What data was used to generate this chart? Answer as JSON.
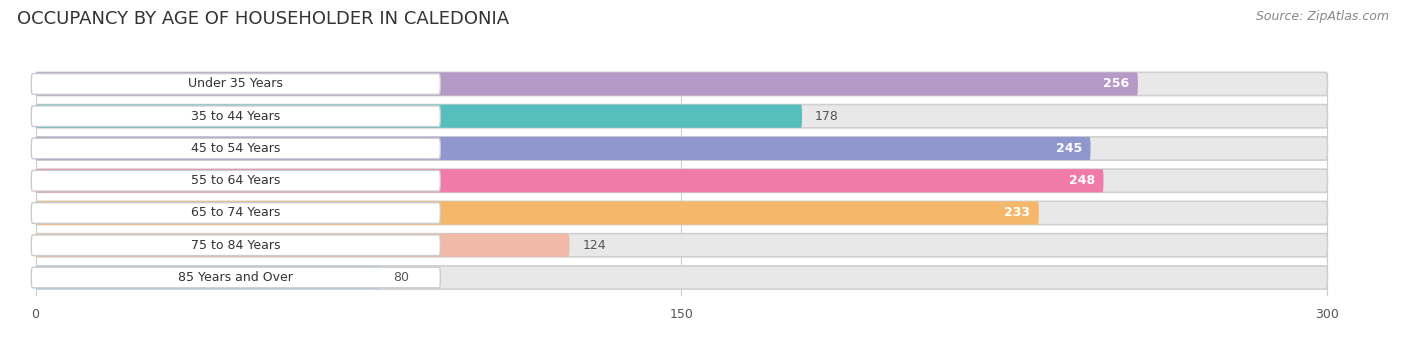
{
  "title": "OCCUPANCY BY AGE OF HOUSEHOLDER IN CALEDONIA",
  "source": "Source: ZipAtlas.com",
  "categories": [
    "Under 35 Years",
    "35 to 44 Years",
    "45 to 54 Years",
    "55 to 64 Years",
    "65 to 74 Years",
    "75 to 84 Years",
    "85 Years and Over"
  ],
  "values": [
    256,
    178,
    245,
    248,
    233,
    124,
    80
  ],
  "bar_colors": [
    "#b599c7",
    "#56bfbd",
    "#9097cf",
    "#f07aaa",
    "#f5b86b",
    "#f0b9a8",
    "#aac8e8"
  ],
  "xlim": [
    0,
    310
  ],
  "xticks": [
    0,
    150,
    300
  ],
  "background_color": "#f0f0f0",
  "title_fontsize": 13,
  "source_fontsize": 9,
  "label_fontsize": 9,
  "value_fontsize": 9,
  "bar_height": 0.72,
  "figsize": [
    14.06,
    3.41
  ],
  "dpi": 100
}
